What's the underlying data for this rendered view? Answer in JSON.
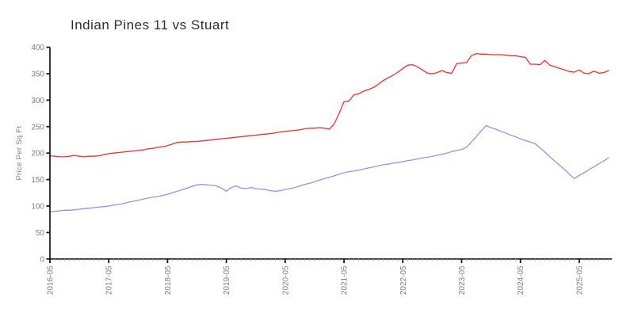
{
  "chart_data": {
    "type": "line",
    "title": "Indian Pines 11 vs Stuart",
    "xlabel": "",
    "ylabel": "Price Per Sq Ft",
    "ylim": [
      0,
      400
    ],
    "y_ticks": [
      0,
      50,
      100,
      150,
      200,
      250,
      300,
      350,
      400
    ],
    "x_start": "2016-05",
    "x_interval": "monthly",
    "x_tick_labels": [
      "2016-05",
      "2017-05",
      "2018-05",
      "2019-05",
      "2020-05",
      "2021-05",
      "2022-05",
      "2023-05",
      "2024-05",
      "2025-05"
    ],
    "x_major_every": 12,
    "grid": false,
    "legend_position": "none",
    "series": [
      {
        "name": "Indian Pines 11",
        "color": "#f03028",
        "values": [
          195,
          194,
          193,
          193,
          194,
          196,
          194,
          193,
          194,
          194,
          195,
          197,
          199,
          200,
          201,
          202,
          203,
          204,
          205,
          206,
          208,
          209,
          211,
          212,
          214,
          217,
          220,
          221,
          221,
          222,
          222,
          223,
          224,
          225,
          226,
          227,
          228,
          229,
          230,
          231,
          232,
          233,
          234,
          235,
          236,
          237,
          238,
          240,
          241,
          242,
          243,
          244,
          246,
          247,
          247,
          248,
          247,
          245,
          255,
          275,
          297,
          298,
          310,
          312,
          317,
          320,
          324,
          330,
          337,
          342,
          347,
          353,
          360,
          366,
          367,
          363,
          357,
          351,
          350,
          352,
          356,
          352,
          351,
          369,
          370,
          371,
          384,
          388,
          387,
          387,
          386,
          386,
          386,
          385,
          384,
          384,
          382,
          381,
          368,
          368,
          367,
          375,
          366,
          363,
          360,
          357,
          354,
          353,
          357,
          351,
          350,
          355,
          351,
          352,
          356
        ]
      },
      {
        "name": "Stuart",
        "color": "#9292f0",
        "values": [
          89,
          90,
          91,
          92,
          92,
          93,
          94,
          95,
          96,
          97,
          98,
          99,
          100,
          102,
          103,
          105,
          107,
          109,
          111,
          113,
          115,
          117,
          118,
          120,
          122,
          125,
          128,
          131,
          134,
          137,
          140,
          141,
          140,
          139,
          138,
          134,
          128,
          135,
          138,
          134,
          133,
          135,
          133,
          132,
          131,
          129,
          128,
          129,
          131,
          133,
          135,
          138,
          141,
          143,
          146,
          149,
          152,
          154,
          157,
          160,
          163,
          165,
          166,
          168,
          170,
          172,
          174,
          176,
          178,
          179,
          181,
          182,
          184,
          186,
          187,
          189,
          191,
          192,
          194,
          196,
          198,
          200,
          203,
          205,
          207,
          211,
          221,
          231,
          242,
          252,
          248,
          245,
          241,
          238,
          234,
          231,
          227,
          224,
          221,
          218,
          210,
          202,
          193,
          185,
          177,
          169,
          160,
          152,
          158,
          163,
          169,
          174,
          180,
          185,
          191
        ]
      }
    ]
  },
  "style": {
    "axis_color": "#141414",
    "tick_label_color": "#7f7f7f",
    "minor_tick_color": "#ababab",
    "background": "#ffffff"
  }
}
